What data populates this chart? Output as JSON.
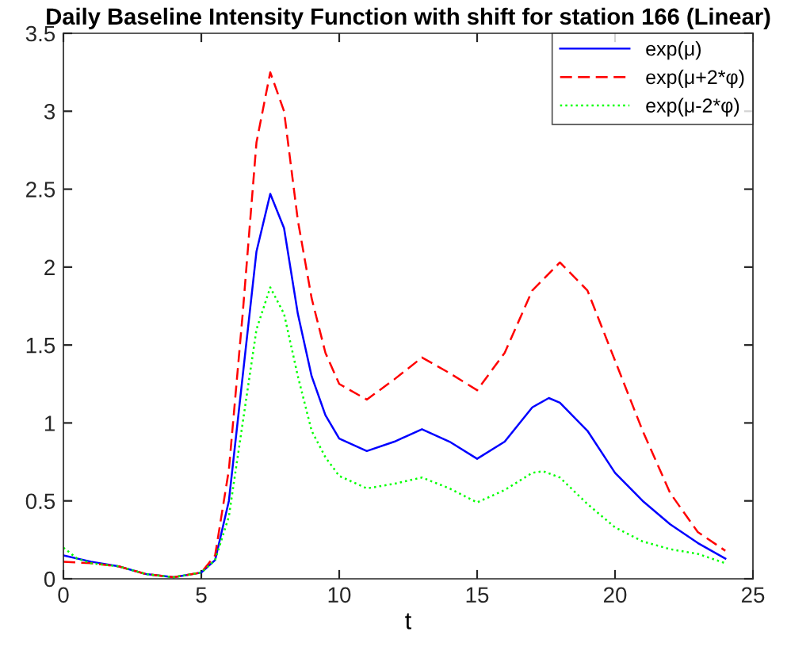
{
  "chart_data": {
    "type": "line",
    "title": "Daily Baseline Intensity Function with shift for station 166 (Linear)",
    "xlabel": "t",
    "xlim": [
      0,
      25
    ],
    "xticks": [
      0,
      5,
      10,
      15,
      20,
      25
    ],
    "ylim": [
      0,
      3.5
    ],
    "yticks": [
      0,
      0.5,
      1,
      1.5,
      2,
      2.5,
      3,
      3.5
    ],
    "grid": false,
    "legend": "top right",
    "series": [
      {
        "name": "exp(μ)",
        "color": "#0000ff",
        "line_style": "solid",
        "x": [
          0,
          1,
          2,
          3,
          4,
          5,
          5.5,
          6,
          6.5,
          7,
          7.5,
          8,
          8.5,
          9,
          9.5,
          10,
          11,
          12,
          13,
          14,
          15,
          16,
          17,
          17.6,
          18,
          19,
          20,
          21,
          22,
          23,
          24
        ],
        "values": [
          0.15,
          0.11,
          0.08,
          0.03,
          0.01,
          0.04,
          0.12,
          0.5,
          1.3,
          2.1,
          2.47,
          2.25,
          1.7,
          1.3,
          1.05,
          0.9,
          0.82,
          0.88,
          0.96,
          0.88,
          0.77,
          0.88,
          1.1,
          1.16,
          1.13,
          0.95,
          0.68,
          0.5,
          0.35,
          0.23,
          0.13
        ]
      },
      {
        "name": "exp(μ+2*φ)",
        "color": "#ff0000",
        "line_style": "dashed",
        "x": [
          0,
          1,
          2,
          3,
          4,
          5,
          5.5,
          6,
          6.5,
          7,
          7.5,
          8,
          8.5,
          9,
          9.5,
          10,
          11,
          12,
          13,
          14,
          15,
          16,
          17,
          18,
          19,
          20,
          21,
          22,
          23,
          24
        ],
        "values": [
          0.11,
          0.1,
          0.08,
          0.03,
          0.01,
          0.04,
          0.15,
          0.7,
          1.7,
          2.8,
          3.25,
          3.0,
          2.3,
          1.8,
          1.45,
          1.25,
          1.15,
          1.28,
          1.42,
          1.32,
          1.21,
          1.45,
          1.85,
          2.03,
          1.85,
          1.4,
          0.95,
          0.55,
          0.3,
          0.18
        ]
      },
      {
        "name": "exp(μ-2*φ)",
        "color": "#00ff00",
        "line_style": "dotted",
        "x": [
          0,
          0.5,
          1,
          2,
          3,
          4,
          5,
          5.5,
          6,
          6.5,
          7,
          7.5,
          8,
          8.5,
          9,
          9.5,
          10,
          11,
          12,
          13,
          14,
          15,
          16,
          17,
          17.4,
          18,
          19,
          20,
          21,
          22,
          23,
          24
        ],
        "values": [
          0.2,
          0.13,
          0.1,
          0.08,
          0.03,
          0.01,
          0.04,
          0.12,
          0.4,
          1.0,
          1.6,
          1.87,
          1.7,
          1.3,
          0.95,
          0.78,
          0.66,
          0.58,
          0.61,
          0.65,
          0.58,
          0.49,
          0.57,
          0.68,
          0.69,
          0.65,
          0.48,
          0.33,
          0.24,
          0.19,
          0.16,
          0.1
        ]
      }
    ]
  }
}
